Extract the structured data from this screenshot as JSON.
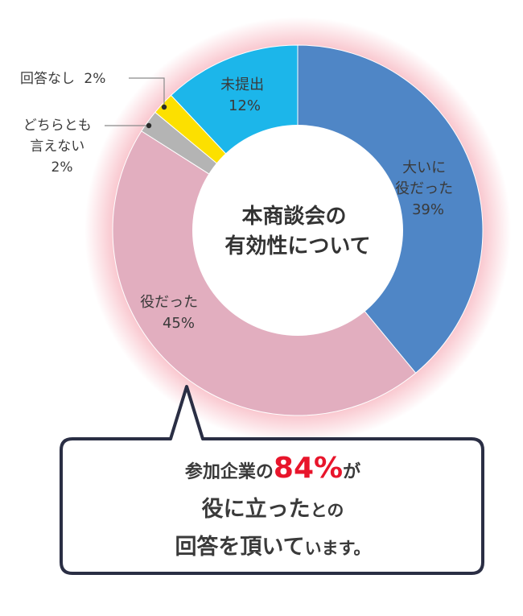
{
  "chart_data": {
    "type": "pie",
    "title_lines": [
      "本商談会の",
      "有効性について"
    ],
    "categories": [
      "大いに役だった",
      "役だった",
      "どちらとも言えない",
      "回答なし",
      "未提出"
    ],
    "values": [
      39,
      45,
      2,
      2,
      12
    ],
    "unit": "%",
    "colors": [
      "#4f86c6",
      "#e2aebf",
      "#b4b4b4",
      "#fce000",
      "#1cb6ea"
    ],
    "labels": [
      {
        "lines": [
          "大いに",
          "役だった"
        ],
        "value_text": "39%"
      },
      {
        "lines": [
          "役だった"
        ],
        "value_text": "45%"
      },
      {
        "lines": [
          "どちらとも",
          "言えない"
        ],
        "value_text": "2%"
      },
      {
        "lines": [
          "回答なし"
        ],
        "value_text": "2%"
      },
      {
        "lines": [
          "未提出"
        ],
        "value_text": "12%"
      }
    ]
  },
  "callout": {
    "line1_prefix": "参加企業の",
    "line1_highlight": "84%",
    "line1_suffix": "が",
    "line2_main": "役に立った",
    "line2_small": "との",
    "line3_main": "回答を頂いて",
    "line3_small": "います。",
    "highlight_color": "#e8152b"
  }
}
